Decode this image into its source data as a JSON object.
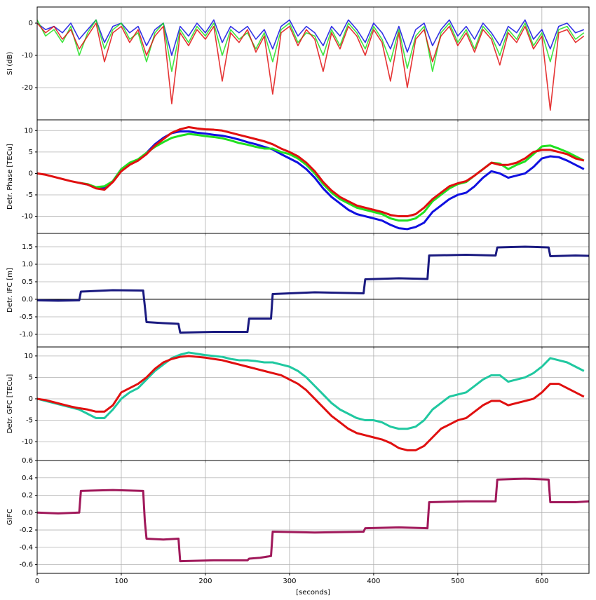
{
  "chart_data": [
    {
      "type": "line",
      "ylabel": "SI (dB)",
      "x": [
        0,
        10,
        20,
        30,
        40,
        50,
        60,
        70,
        80,
        90,
        100,
        110,
        120,
        130,
        140,
        150,
        160,
        170,
        180,
        190,
        200,
        210,
        220,
        230,
        240,
        250,
        260,
        270,
        280,
        290,
        300,
        310,
        320,
        330,
        340,
        350,
        360,
        370,
        380,
        390,
        400,
        410,
        420,
        430,
        440,
        450,
        460,
        470,
        480,
        490,
        500,
        510,
        520,
        530,
        540,
        550,
        560,
        570,
        580,
        590,
        600,
        610,
        620,
        630,
        640,
        650
      ],
      "xlim": [
        0,
        656
      ],
      "xticks": [
        0,
        100,
        200,
        300,
        400,
        500,
        600
      ],
      "ylim": [
        -30,
        5
      ],
      "yticks": [
        0,
        -10,
        -20
      ],
      "grid": true,
      "series": [
        {
          "name": "blue",
          "color": "#1010e0",
          "values": [
            0,
            -2,
            -1,
            -3,
            0,
            -5,
            -2,
            1,
            -6,
            -1,
            0,
            -3,
            -1,
            -7,
            -2,
            0,
            -10,
            -1,
            -4,
            0,
            -3,
            1,
            -6,
            -1,
            -3,
            -1,
            -5,
            -2,
            -8,
            -1,
            1,
            -4,
            -1,
            -3,
            -7,
            -1,
            -4,
            1,
            -2,
            -6,
            0,
            -3,
            -8,
            -1,
            -9,
            -2,
            0,
            -7,
            -2,
            1,
            -4,
            -1,
            -5,
            0,
            -3,
            -7,
            -1,
            -3,
            1,
            -5,
            -2,
            -8,
            -1,
            0,
            -3,
            -2
          ]
        },
        {
          "name": "green",
          "color": "#20e020",
          "values": [
            1,
            -4,
            -2,
            -6,
            -1,
            -10,
            -3,
            1,
            -8,
            -2,
            0,
            -5,
            -3,
            -12,
            -3,
            0,
            -15,
            -2,
            -6,
            -1,
            -4,
            0,
            -10,
            -2,
            -5,
            -3,
            -8,
            -3,
            -12,
            -2,
            0,
            -6,
            -3,
            -4,
            -10,
            -2,
            -7,
            0,
            -3,
            -8,
            -1,
            -5,
            -12,
            -2,
            -14,
            -4,
            -1,
            -15,
            -3,
            0,
            -6,
            -2,
            -8,
            -1,
            -4,
            -10,
            -2,
            -5,
            0,
            -7,
            -3,
            -12,
            -2,
            -1,
            -5,
            -3
          ]
        },
        {
          "name": "red",
          "color": "#e01010",
          "values": [
            0,
            -3,
            -1,
            -5,
            -2,
            -8,
            -4,
            0,
            -12,
            -3,
            -1,
            -6,
            -2,
            -10,
            -4,
            -1,
            -25,
            -3,
            -7,
            -2,
            -5,
            -1,
            -18,
            -3,
            -6,
            -2,
            -9,
            -4,
            -22,
            -3,
            -1,
            -7,
            -2,
            -5,
            -15,
            -3,
            -8,
            -1,
            -4,
            -10,
            -2,
            -6,
            -18,
            -3,
            -20,
            -5,
            -2,
            -12,
            -4,
            -1,
            -7,
            -3,
            -9,
            -2,
            -5,
            -13,
            -3,
            -6,
            -1,
            -8,
            -4,
            -27,
            -3,
            -2,
            -6,
            -4
          ]
        }
      ]
    },
    {
      "type": "line",
      "ylabel": "Detr. Phase [TECu]",
      "x": [
        0,
        10,
        20,
        30,
        40,
        50,
        60,
        70,
        80,
        90,
        100,
        110,
        120,
        130,
        140,
        150,
        160,
        170,
        180,
        190,
        200,
        210,
        220,
        230,
        240,
        250,
        260,
        270,
        280,
        290,
        300,
        310,
        320,
        330,
        340,
        350,
        360,
        370,
        380,
        390,
        400,
        410,
        420,
        430,
        440,
        450,
        460,
        470,
        480,
        490,
        500,
        510,
        520,
        530,
        540,
        550,
        560,
        570,
        580,
        590,
        600,
        610,
        620,
        630,
        640,
        650
      ],
      "xlim": [
        0,
        656
      ],
      "xticks": [
        0,
        100,
        200,
        300,
        400,
        500,
        600
      ],
      "ylim": [
        -14,
        12.5
      ],
      "yticks": [
        10,
        5,
        0,
        -5,
        -10
      ],
      "grid": true,
      "series": [
        {
          "name": "blue",
          "color": "#1010e0",
          "values": [
            null,
            null,
            null,
            null,
            null,
            -2.2,
            -2.6,
            -3.3,
            -3.3,
            -1.8,
            1,
            2.3,
            3,
            4.8,
            6.8,
            8.3,
            9.4,
            9.8,
            9.8,
            9.5,
            9.3,
            9,
            8.8,
            8.4,
            7.9,
            7.3,
            6.8,
            6.2,
            5.6,
            4.5,
            3.5,
            2.5,
            1,
            -1,
            -3.5,
            -5.5,
            -7,
            -8.5,
            -9.5,
            -10,
            -10.5,
            -11,
            -12,
            -12.8,
            -13,
            -12.5,
            -11.5,
            -9,
            -7.5,
            -6,
            -5,
            -4.5,
            -3,
            -1,
            0.5,
            0,
            -1,
            -0.5,
            0,
            1.5,
            3.5,
            4,
            3.8,
            3,
            2,
            1
          ]
        },
        {
          "name": "green",
          "color": "#20e020",
          "values": [
            null,
            null,
            null,
            null,
            null,
            -2.2,
            -2.5,
            -3.2,
            -3,
            -1.8,
            1,
            2.5,
            3.3,
            4.8,
            6.2,
            7.3,
            8.3,
            8.8,
            9.2,
            9,
            8.7,
            8.5,
            8.2,
            7.7,
            7.1,
            6.7,
            6.2,
            5.8,
            5.8,
            5,
            4.5,
            3.5,
            2,
            0,
            -2.5,
            -4.5,
            -6,
            -7,
            -8,
            -8.5,
            -9,
            -9.5,
            -10.5,
            -11,
            -11,
            -10.5,
            -9,
            -6.5,
            -5,
            -3.5,
            -2.5,
            -2,
            -0.5,
            1,
            2.5,
            2.3,
            1,
            2,
            2.8,
            4.5,
            6.3,
            6.5,
            5.8,
            5,
            4,
            3
          ]
        },
        {
          "name": "red",
          "color": "#e01010",
          "values": [
            0,
            -0.3,
            -0.8,
            -1.3,
            -1.8,
            -2.2,
            -2.6,
            -3.5,
            -3.8,
            -2,
            0.5,
            2,
            3,
            4.5,
            6.5,
            8,
            9.5,
            10.3,
            10.8,
            10.5,
            10.3,
            10.2,
            10,
            9.5,
            9,
            8.5,
            8,
            7.5,
            6.8,
            5.8,
            5,
            4,
            2.5,
            0.5,
            -2,
            -4,
            -5.5,
            -6.5,
            -7.5,
            -8,
            -8.5,
            -9,
            -9.7,
            -10,
            -10,
            -9.5,
            -8,
            -6,
            -4.5,
            -3,
            -2.3,
            -1.8,
            -0.5,
            1,
            2.5,
            2,
            2,
            2.5,
            3.5,
            5,
            5.5,
            5.5,
            5,
            4.5,
            3.5,
            3
          ]
        }
      ]
    },
    {
      "type": "line",
      "ylabel": "Detr. IFC [m]",
      "zero_line": true,
      "x": [
        0,
        25,
        50,
        52,
        90,
        126,
        128,
        130,
        150,
        168,
        170,
        210,
        250,
        252,
        265,
        278,
        280,
        330,
        388,
        390,
        430,
        464,
        466,
        510,
        545,
        547,
        580,
        608,
        610,
        640,
        656
      ],
      "xlim": [
        0,
        656
      ],
      "xticks": [
        0,
        100,
        200,
        300,
        400,
        500,
        600
      ],
      "ylim": [
        -1.36,
        1.88
      ],
      "yticks": [
        1.5,
        {
          "value": 1,
          "label": "1.0"
        },
        0.5,
        {
          "value": 0,
          "label": "0.0"
        },
        -0.5,
        {
          "value": -1,
          "label": "-1.0"
        }
      ],
      "grid": true,
      "series": [
        {
          "name": "IFC",
          "color": "#1a1a80",
          "values": [
            -0.03,
            -0.04,
            -0.03,
            0.22,
            0.26,
            0.25,
            -0.2,
            -0.65,
            -0.68,
            -0.7,
            -0.95,
            -0.93,
            -0.93,
            -0.55,
            -0.55,
            -0.55,
            0.15,
            0.2,
            0.17,
            0.57,
            0.6,
            0.58,
            1.25,
            1.27,
            1.25,
            1.48,
            1.5,
            1.48,
            1.23,
            1.25,
            1.24
          ]
        }
      ]
    },
    {
      "type": "line",
      "ylabel": "Detr. GFC [TECu]",
      "x": [
        0,
        10,
        20,
        30,
        40,
        50,
        60,
        70,
        80,
        90,
        100,
        110,
        120,
        130,
        140,
        150,
        160,
        170,
        180,
        190,
        200,
        210,
        220,
        230,
        240,
        250,
        260,
        270,
        280,
        290,
        300,
        310,
        320,
        330,
        340,
        350,
        360,
        370,
        380,
        390,
        400,
        410,
        420,
        430,
        440,
        450,
        460,
        470,
        480,
        490,
        500,
        510,
        520,
        530,
        540,
        550,
        560,
        570,
        580,
        590,
        600,
        610,
        620,
        630,
        640,
        650
      ],
      "xlim": [
        0,
        656
      ],
      "xticks": [
        0,
        100,
        200,
        300,
        400,
        500,
        600
      ],
      "ylim": [
        -14.4,
        12.1
      ],
      "yticks": [
        10,
        5,
        0,
        -5,
        -10
      ],
      "grid": true,
      "series": [
        {
          "name": "teal",
          "color": "#20c8a0",
          "values": [
            0,
            -0.5,
            -1,
            -1.5,
            -2,
            -2.5,
            -3.5,
            -4.5,
            -4.5,
            -2.5,
            0,
            1.5,
            2.5,
            4.5,
            6.5,
            8,
            9.5,
            10.3,
            10.8,
            10.5,
            10.2,
            10,
            9.8,
            9.3,
            9,
            9,
            8.8,
            8.5,
            8.5,
            8,
            7.5,
            6.5,
            5,
            3,
            1,
            -1,
            -2.5,
            -3.5,
            -4.5,
            -5,
            -5,
            -5.5,
            -6.5,
            -7,
            -7,
            -6.5,
            -5,
            -2.5,
            -1,
            0.5,
            1,
            1.5,
            3,
            4.5,
            5.5,
            5.5,
            4,
            4.5,
            5,
            6,
            7.5,
            9.5,
            9,
            8.5,
            7.5,
            6.5
          ]
        },
        {
          "name": "red",
          "color": "#e01010",
          "values": [
            0,
            -0.3,
            -0.8,
            -1.3,
            -1.8,
            -2.2,
            -2.5,
            -3,
            -3,
            -1.5,
            1.5,
            2.5,
            3.5,
            5,
            7,
            8.5,
            9.3,
            9.8,
            10,
            9.8,
            9.6,
            9.3,
            9,
            8.5,
            8,
            7.5,
            7,
            6.5,
            6,
            5.5,
            4.5,
            3.5,
            2,
            0,
            -2,
            -4,
            -5.5,
            -7,
            -8,
            -8.5,
            -9,
            -9.5,
            -10.3,
            -11.5,
            -12,
            -12,
            -11,
            -9,
            -7,
            -6,
            -5,
            -4.5,
            -3,
            -1.5,
            -0.5,
            -0.5,
            -1.5,
            -1,
            -0.5,
            0,
            1.5,
            3.5,
            3.5,
            2.5,
            1.5,
            0.5
          ]
        }
      ]
    },
    {
      "type": "line",
      "ylabel": "GIFC",
      "xlabel": "[seconds]",
      "x": [
        0,
        25,
        50,
        52,
        90,
        126,
        128,
        130,
        150,
        168,
        170,
        210,
        250,
        252,
        265,
        278,
        280,
        330,
        388,
        390,
        430,
        464,
        466,
        510,
        545,
        547,
        580,
        608,
        610,
        640,
        656
      ],
      "xlim": [
        0,
        656
      ],
      "xticks": [
        0,
        100,
        200,
        300,
        400,
        500,
        600
      ],
      "ylim": [
        -0.7,
        0.6
      ],
      "yticks": [
        0.6,
        0.4,
        0.2,
        {
          "value": 0,
          "label": "0.0"
        },
        -0.2,
        -0.4,
        -0.6
      ],
      "grid": true,
      "series": [
        {
          "name": "GIFC",
          "color": "#a0185a",
          "values": [
            0,
            -0.01,
            0,
            0.25,
            0.26,
            0.25,
            -0.1,
            -0.3,
            -0.31,
            -0.3,
            -0.56,
            -0.55,
            -0.55,
            -0.53,
            -0.52,
            -0.5,
            -0.22,
            -0.23,
            -0.22,
            -0.18,
            -0.17,
            -0.18,
            0.12,
            0.13,
            0.13,
            0.38,
            0.39,
            0.38,
            0.12,
            0.12,
            0.13
          ]
        }
      ]
    }
  ]
}
